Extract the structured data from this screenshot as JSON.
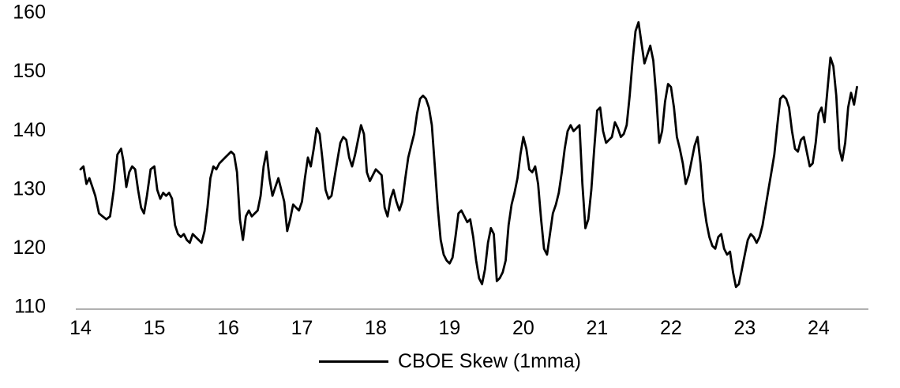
{
  "chart_data": {
    "type": "line",
    "title": "",
    "xlabel": "",
    "ylabel": "",
    "legend": "CBOE Skew (1mma)",
    "legend_position": "bottom-center",
    "grid": false,
    "xlim": [
      14,
      24.6
    ],
    "ylim": [
      110,
      160
    ],
    "xticks": [
      14,
      15,
      16,
      17,
      18,
      19,
      20,
      21,
      22,
      23,
      24
    ],
    "yticks": [
      110,
      120,
      130,
      140,
      150,
      160
    ],
    "line_color": "#000000",
    "axis_color": "#a6a6a6",
    "series": [
      {
        "name": "CBOE Skew (1mma)",
        "points": [
          [
            14.0,
            133.5
          ],
          [
            14.04,
            134
          ],
          [
            14.08,
            131
          ],
          [
            14.12,
            132
          ],
          [
            14.16,
            130.5
          ],
          [
            14.2,
            129
          ],
          [
            14.25,
            126
          ],
          [
            14.3,
            125.5
          ],
          [
            14.35,
            125
          ],
          [
            14.4,
            125.5
          ],
          [
            14.45,
            130
          ],
          [
            14.5,
            136
          ],
          [
            14.55,
            137
          ],
          [
            14.58,
            135
          ],
          [
            14.62,
            130.5
          ],
          [
            14.66,
            133
          ],
          [
            14.7,
            134
          ],
          [
            14.74,
            133.5
          ],
          [
            14.78,
            130
          ],
          [
            14.82,
            127
          ],
          [
            14.86,
            126
          ],
          [
            14.9,
            129
          ],
          [
            14.95,
            133.5
          ],
          [
            15.0,
            134
          ],
          [
            15.04,
            130
          ],
          [
            15.08,
            128.5
          ],
          [
            15.12,
            129.5
          ],
          [
            15.16,
            129
          ],
          [
            15.2,
            129.5
          ],
          [
            15.24,
            128.5
          ],
          [
            15.28,
            124
          ],
          [
            15.32,
            122.5
          ],
          [
            15.36,
            122
          ],
          [
            15.4,
            122.5
          ],
          [
            15.44,
            121.5
          ],
          [
            15.48,
            121
          ],
          [
            15.52,
            122.5
          ],
          [
            15.56,
            122
          ],
          [
            15.6,
            121.5
          ],
          [
            15.64,
            121
          ],
          [
            15.68,
            123
          ],
          [
            15.72,
            127
          ],
          [
            15.76,
            132
          ],
          [
            15.8,
            134
          ],
          [
            15.84,
            133.5
          ],
          [
            15.88,
            134.5
          ],
          [
            15.92,
            135
          ],
          [
            15.96,
            135.5
          ],
          [
            16.0,
            136
          ],
          [
            16.04,
            136.5
          ],
          [
            16.08,
            136
          ],
          [
            16.12,
            133
          ],
          [
            16.16,
            125
          ],
          [
            16.2,
            121.5
          ],
          [
            16.24,
            125.5
          ],
          [
            16.28,
            126.5
          ],
          [
            16.32,
            125.5
          ],
          [
            16.36,
            126
          ],
          [
            16.4,
            126.5
          ],
          [
            16.44,
            129
          ],
          [
            16.48,
            134
          ],
          [
            16.52,
            136.5
          ],
          [
            16.56,
            132
          ],
          [
            16.6,
            129
          ],
          [
            16.64,
            130.5
          ],
          [
            16.68,
            132
          ],
          [
            16.72,
            130
          ],
          [
            16.76,
            128
          ],
          [
            16.8,
            123
          ],
          [
            16.84,
            125
          ],
          [
            16.88,
            127.5
          ],
          [
            16.92,
            127
          ],
          [
            16.96,
            126.5
          ],
          [
            17.0,
            128
          ],
          [
            17.04,
            132
          ],
          [
            17.08,
            135.5
          ],
          [
            17.12,
            134
          ],
          [
            17.16,
            137
          ],
          [
            17.2,
            140.5
          ],
          [
            17.24,
            139.5
          ],
          [
            17.28,
            135
          ],
          [
            17.32,
            130
          ],
          [
            17.36,
            128.5
          ],
          [
            17.4,
            129
          ],
          [
            17.44,
            132
          ],
          [
            17.48,
            135
          ],
          [
            17.52,
            138
          ],
          [
            17.56,
            139
          ],
          [
            17.6,
            138.5
          ],
          [
            17.64,
            135.5
          ],
          [
            17.68,
            134
          ],
          [
            17.72,
            136
          ],
          [
            17.76,
            138.5
          ],
          [
            17.8,
            141
          ],
          [
            17.84,
            139.5
          ],
          [
            17.88,
            133
          ],
          [
            17.92,
            131.5
          ],
          [
            17.96,
            132.5
          ],
          [
            18.0,
            133.5
          ],
          [
            18.04,
            133
          ],
          [
            18.08,
            132.5
          ],
          [
            18.12,
            127
          ],
          [
            18.16,
            125.5
          ],
          [
            18.2,
            128.5
          ],
          [
            18.24,
            130
          ],
          [
            18.28,
            128
          ],
          [
            18.32,
            126.5
          ],
          [
            18.36,
            128
          ],
          [
            18.4,
            132
          ],
          [
            18.44,
            135.5
          ],
          [
            18.48,
            137.5
          ],
          [
            18.52,
            139.5
          ],
          [
            18.56,
            143
          ],
          [
            18.6,
            145.5
          ],
          [
            18.64,
            146
          ],
          [
            18.68,
            145.5
          ],
          [
            18.72,
            144
          ],
          [
            18.76,
            141
          ],
          [
            18.8,
            134
          ],
          [
            18.84,
            127
          ],
          [
            18.88,
            121.5
          ],
          [
            18.92,
            119
          ],
          [
            18.96,
            118
          ],
          [
            19.0,
            117.5
          ],
          [
            19.04,
            118.5
          ],
          [
            19.08,
            122
          ],
          [
            19.12,
            126
          ],
          [
            19.16,
            126.5
          ],
          [
            19.2,
            125.5
          ],
          [
            19.24,
            124.5
          ],
          [
            19.28,
            125
          ],
          [
            19.32,
            122
          ],
          [
            19.36,
            118
          ],
          [
            19.4,
            115
          ],
          [
            19.44,
            114
          ],
          [
            19.48,
            116.5
          ],
          [
            19.52,
            121
          ],
          [
            19.56,
            123.5
          ],
          [
            19.6,
            122.5
          ],
          [
            19.64,
            114.5
          ],
          [
            19.68,
            115
          ],
          [
            19.72,
            116
          ],
          [
            19.76,
            118
          ],
          [
            19.8,
            124
          ],
          [
            19.84,
            127.5
          ],
          [
            19.88,
            129.5
          ],
          [
            19.92,
            132
          ],
          [
            19.96,
            136
          ],
          [
            20.0,
            139
          ],
          [
            20.04,
            137
          ],
          [
            20.08,
            133.5
          ],
          [
            20.12,
            133
          ],
          [
            20.16,
            134
          ],
          [
            20.2,
            131
          ],
          [
            20.24,
            125
          ],
          [
            20.28,
            120
          ],
          [
            20.32,
            119
          ],
          [
            20.36,
            122.5
          ],
          [
            20.4,
            126
          ],
          [
            20.44,
            127.5
          ],
          [
            20.48,
            129.5
          ],
          [
            20.52,
            133
          ],
          [
            20.56,
            137
          ],
          [
            20.6,
            140
          ],
          [
            20.64,
            141
          ],
          [
            20.68,
            140
          ],
          [
            20.72,
            140.5
          ],
          [
            20.76,
            141
          ],
          [
            20.8,
            131
          ],
          [
            20.84,
            123.5
          ],
          [
            20.88,
            125
          ],
          [
            20.92,
            130
          ],
          [
            20.96,
            137
          ],
          [
            21.0,
            143.5
          ],
          [
            21.04,
            144
          ],
          [
            21.08,
            140
          ],
          [
            21.12,
            138
          ],
          [
            21.16,
            138.5
          ],
          [
            21.2,
            139
          ],
          [
            21.24,
            141.5
          ],
          [
            21.28,
            140.5
          ],
          [
            21.32,
            139
          ],
          [
            21.36,
            139.5
          ],
          [
            21.4,
            141
          ],
          [
            21.44,
            146
          ],
          [
            21.48,
            152
          ],
          [
            21.52,
            157
          ],
          [
            21.56,
            158.5
          ],
          [
            21.6,
            155
          ],
          [
            21.64,
            151.5
          ],
          [
            21.68,
            153
          ],
          [
            21.72,
            154.5
          ],
          [
            21.76,
            152
          ],
          [
            21.8,
            146
          ],
          [
            21.84,
            138
          ],
          [
            21.88,
            140
          ],
          [
            21.92,
            145
          ],
          [
            21.96,
            148
          ],
          [
            22.0,
            147.5
          ],
          [
            22.04,
            144
          ],
          [
            22.08,
            139
          ],
          [
            22.12,
            137
          ],
          [
            22.16,
            134.5
          ],
          [
            22.2,
            131
          ],
          [
            22.24,
            132.5
          ],
          [
            22.28,
            135
          ],
          [
            22.32,
            137.5
          ],
          [
            22.36,
            139
          ],
          [
            22.4,
            134.5
          ],
          [
            22.44,
            128
          ],
          [
            22.48,
            124.5
          ],
          [
            22.52,
            122
          ],
          [
            22.56,
            120.5
          ],
          [
            22.6,
            120
          ],
          [
            22.64,
            122
          ],
          [
            22.68,
            122.5
          ],
          [
            22.72,
            120
          ],
          [
            22.76,
            119
          ],
          [
            22.8,
            119.5
          ],
          [
            22.84,
            116
          ],
          [
            22.88,
            113.5
          ],
          [
            22.92,
            114
          ],
          [
            22.96,
            116.5
          ],
          [
            23.0,
            119
          ],
          [
            23.04,
            121.5
          ],
          [
            23.08,
            122.5
          ],
          [
            23.12,
            122
          ],
          [
            23.16,
            121
          ],
          [
            23.2,
            122
          ],
          [
            23.24,
            124
          ],
          [
            23.28,
            127
          ],
          [
            23.32,
            130
          ],
          [
            23.36,
            133
          ],
          [
            23.4,
            136
          ],
          [
            23.44,
            141
          ],
          [
            23.48,
            145.5
          ],
          [
            23.52,
            146
          ],
          [
            23.56,
            145.5
          ],
          [
            23.6,
            144
          ],
          [
            23.64,
            140
          ],
          [
            23.68,
            137
          ],
          [
            23.72,
            136.5
          ],
          [
            23.76,
            138.5
          ],
          [
            23.8,
            139
          ],
          [
            23.84,
            136.5
          ],
          [
            23.88,
            134
          ],
          [
            23.92,
            134.5
          ],
          [
            23.96,
            138
          ],
          [
            24.0,
            143
          ],
          [
            24.04,
            144
          ],
          [
            24.08,
            141.5
          ],
          [
            24.12,
            147
          ],
          [
            24.16,
            152.5
          ],
          [
            24.2,
            151
          ],
          [
            24.24,
            146
          ],
          [
            24.28,
            137
          ],
          [
            24.32,
            135
          ],
          [
            24.36,
            138
          ],
          [
            24.4,
            144
          ],
          [
            24.44,
            146.5
          ],
          [
            24.48,
            144.5
          ],
          [
            24.52,
            147.5
          ]
        ]
      }
    ]
  }
}
